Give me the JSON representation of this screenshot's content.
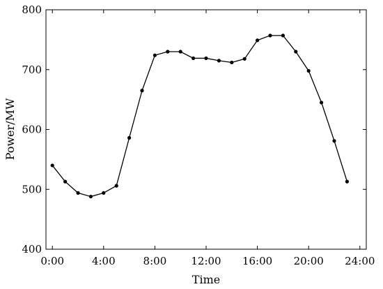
{
  "chart_data": {
    "type": "line",
    "xlabel": "Time",
    "ylabel": "Power/MW",
    "xlim": [
      -0.5,
      24.5
    ],
    "ylim": [
      400,
      800
    ],
    "x_ticks": [
      0,
      4,
      8,
      12,
      16,
      20,
      24
    ],
    "x_tick_labels": [
      "0:00",
      "4:00",
      "8:00",
      "12:00",
      "16:00",
      "20:00",
      "24:00"
    ],
    "y_ticks": [
      400,
      500,
      600,
      700,
      800
    ],
    "y_tick_labels": [
      "400",
      "500",
      "600",
      "700",
      "800"
    ],
    "grid": false,
    "series": [
      {
        "color": "#000000",
        "x": [
          0,
          1,
          2,
          3,
          4,
          5,
          6,
          7,
          8,
          9,
          10,
          11,
          12,
          13,
          14,
          15,
          16,
          17,
          18,
          19,
          20,
          21,
          22,
          23
        ],
        "y": [
          540,
          513,
          494,
          488,
          494,
          506,
          586,
          665,
          724,
          730,
          730,
          719,
          719,
          715,
          712,
          718,
          749,
          757,
          757,
          730,
          698,
          645,
          581,
          513
        ]
      }
    ]
  }
}
